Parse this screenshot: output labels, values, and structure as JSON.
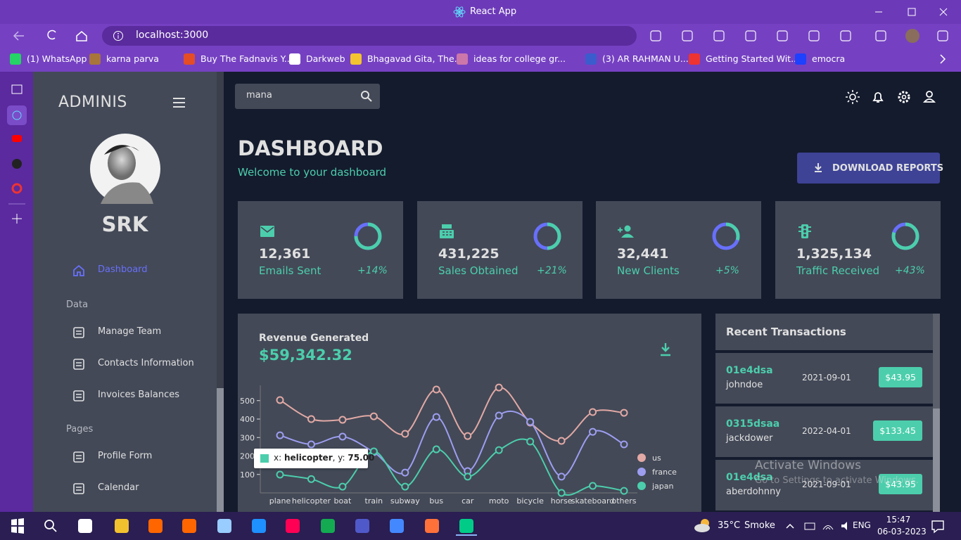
{
  "browser": {
    "title": "React App",
    "url": "localhost:3000",
    "bookmarks": [
      "(1) WhatsApp",
      "karna parva",
      "Buy The Fadnavis Y...",
      "Darkweb",
      "Bhagavad Gita, The...",
      "ideas for college gr...",
      "(3) AR RAHMAN U...",
      "Getting Started Wit...",
      "emocra"
    ]
  },
  "sidebar": {
    "brand": "ADMINIS",
    "user": "SRK",
    "items": [
      "Dashboard",
      "Manage Team",
      "Contacts Information",
      "Invoices Balances",
      "Profile Form",
      "Calendar"
    ],
    "sections": [
      "Data",
      "Pages"
    ]
  },
  "header": {
    "search": "mana",
    "title": "DASHBOARD",
    "subtitle": "Welcome to your dashboard",
    "button": "DOWNLOAD REPORTS"
  },
  "stats": [
    {
      "value": "12,361",
      "label": "Emails Sent",
      "change": "+14%",
      "progress": 0.75
    },
    {
      "value": "431,225",
      "label": "Sales Obtained",
      "change": "+21%",
      "progress": 0.5
    },
    {
      "value": "32,441",
      "label": "New Clients",
      "change": "+5%",
      "progress": 0.3
    },
    {
      "value": "1,325,134",
      "label": "Traffic Received",
      "change": "+43%",
      "progress": 0.8
    }
  ],
  "chart_data": {
    "type": "line",
    "title": "Revenue Generated",
    "subtitle": "$59,342.32",
    "categories": [
      "plane",
      "helicopter",
      "boat",
      "train",
      "subway",
      "bus",
      "car",
      "moto",
      "bicycle",
      "horse",
      "skateboard",
      "others"
    ],
    "series": [
      {
        "name": "us",
        "color": "#e2a9a5",
        "values": [
          503,
          400,
          396,
          415,
          320,
          560,
          308,
          571,
          381,
          282,
          438,
          434
        ]
      },
      {
        "name": "france",
        "color": "#9d9ef0",
        "values": [
          312,
          263,
          305,
          221,
          110,
          411,
          118,
          419,
          385,
          88,
          331,
          263
        ]
      },
      {
        "name": "japan",
        "color": "#4cceac",
        "values": [
          99,
          75,
          34,
          225,
          34,
          236,
          88,
          232,
          278,
          0,
          38,
          11
        ]
      }
    ],
    "ylim": [
      0,
      580
    ],
    "yticks": [
      100,
      200,
      300,
      400,
      500
    ],
    "tooltip": {
      "x_prefix": "x: ",
      "x": "helicopter",
      "y_prefix": ", y: ",
      "y": "75.00"
    }
  },
  "transactions": {
    "title": "Recent Transactions",
    "rows": [
      {
        "id": "01e4dsa",
        "user": "johndoe",
        "date": "2021-09-01",
        "cost": "$43.95"
      },
      {
        "id": "0315dsaa",
        "user": "jackdower",
        "date": "2022-04-01",
        "cost": "$133.45"
      },
      {
        "id": "01e4dsa",
        "user": "aberdohnny",
        "date": "2021-09-01",
        "cost": "$43.95"
      }
    ]
  },
  "watermark": {
    "title": "Activate Windows",
    "text": "Go to Settings to activate Windows."
  },
  "taskbar": {
    "temperature": "35°C",
    "weather": "Smoke",
    "language": "ENG",
    "time": "15:47",
    "date": "06-03-2023"
  }
}
